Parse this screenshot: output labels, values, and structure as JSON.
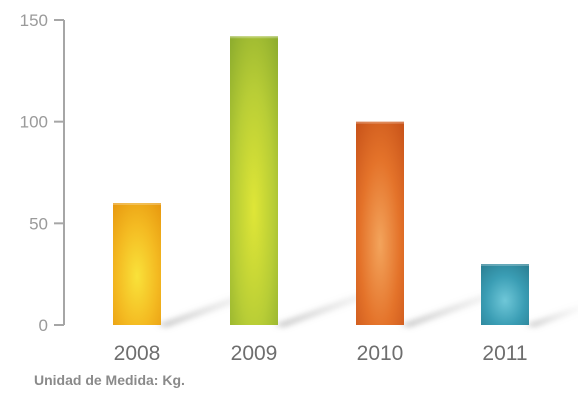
{
  "note": "Unidad de Medida: Kg.",
  "chart_data": {
    "type": "bar",
    "categories": [
      "2008",
      "2009",
      "2010",
      "2011"
    ],
    "values": [
      60,
      142,
      100,
      30
    ],
    "ylim": [
      0,
      150
    ],
    "yticks": [
      0,
      50,
      100,
      150
    ],
    "grid": false,
    "colors": [
      {
        "light": "#f9e23a",
        "mid": "#f4bb22",
        "dark": "#e89a10"
      },
      {
        "light": "#dfe637",
        "mid": "#b8cd36",
        "dark": "#8fae2e"
      },
      {
        "light": "#f3a45c",
        "mid": "#e4732a",
        "dark": "#c9541a"
      },
      {
        "light": "#6fc7d8",
        "mid": "#3a9db4",
        "dark": "#2b7f93"
      }
    ],
    "axis_color": "#a6a6a6"
  }
}
